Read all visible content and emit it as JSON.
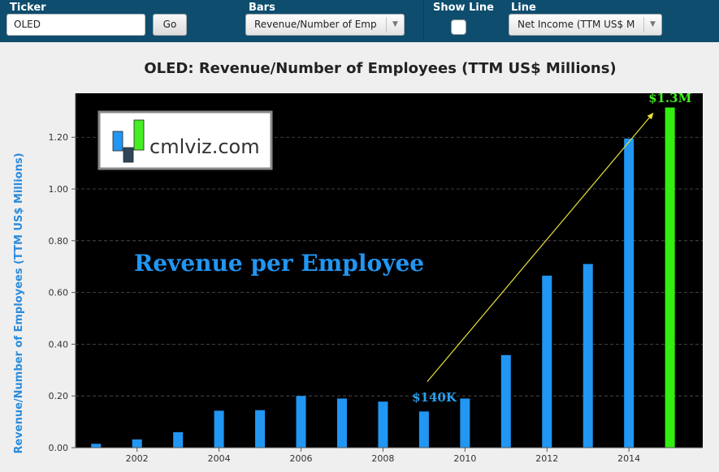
{
  "toolbar": {
    "ticker_label": "Ticker",
    "ticker_value": "OLED",
    "go_label": "Go",
    "bars_label": "Bars",
    "bars_value": "Revenue/Number of Emp",
    "showline_label": "Show Line",
    "line_label": "Line",
    "line_value": "Net Income (TTM US$ M"
  },
  "colors": {
    "toolbar_bg": "#0e4d6e",
    "bar": "#2196f3",
    "highlight_bar": "#33ee11",
    "plot_bg": "#000000",
    "ylabel": "#2a8bdc",
    "arrow": "#e8e03a"
  },
  "logo": {
    "text": "cmlviz.com"
  },
  "chart_data": {
    "type": "bar",
    "title": "OLED: Revenue/Number of Employees (TTM US$ Millions)",
    "ylabel": "Revenue/Number of Employees (TTM US$ Millions)",
    "xlabel": "",
    "ylim": [
      0,
      1.37
    ],
    "xlim": [
      2000.5,
      2015.8
    ],
    "grid": "horizontal dashed",
    "x_ticks": [
      "2002",
      "2004",
      "2006",
      "2008",
      "2010",
      "2012",
      "2014"
    ],
    "y_ticks": [
      "0.00",
      "0.20",
      "0.40",
      "0.60",
      "0.80",
      "1.00",
      "1.20"
    ],
    "series": [
      {
        "x": [
          2001,
          2002,
          2003,
          2004,
          2005,
          2006,
          2007,
          2008,
          2009,
          2010,
          2011,
          2012,
          2013,
          2014,
          2015
        ],
        "values": [
          0.015,
          0.032,
          0.06,
          0.143,
          0.145,
          0.2,
          0.19,
          0.178,
          0.14,
          0.19,
          0.358,
          0.665,
          0.71,
          1.195,
          1.315
        ]
      }
    ],
    "highlight_index": 14,
    "annotations": {
      "main": "Revenue per Employee",
      "start_label": "$140K",
      "end_label": "$1.3M"
    }
  }
}
